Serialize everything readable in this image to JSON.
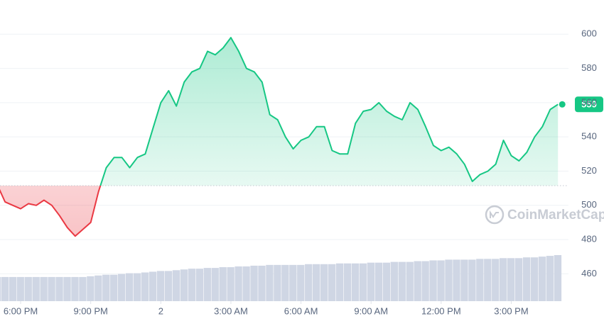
{
  "chart_data": {
    "type": "line",
    "series": [
      {
        "name": "Price",
        "color": "#16c784",
        "down_color": "#ea3943",
        "values": [
          512,
          502,
          500,
          498,
          501,
          500,
          503,
          500,
          494,
          487,
          482,
          486,
          490,
          508,
          522,
          528,
          528,
          522,
          528,
          530,
          545,
          560,
          567,
          558,
          572,
          578,
          580,
          590,
          588,
          592,
          598,
          590,
          580,
          578,
          572,
          553,
          550,
          540,
          533,
          538,
          540,
          546,
          546,
          532,
          530,
          530,
          548,
          555,
          556,
          560,
          555,
          552,
          550,
          560,
          556,
          546,
          535,
          532,
          534,
          530,
          524,
          514,
          518,
          520,
          524,
          538,
          529,
          526,
          531,
          540,
          546,
          556,
          559
        ]
      },
      {
        "name": "Volume",
        "color": "#cfd6e4",
        "values": [
          32,
          32,
          32,
          32,
          32,
          32,
          32,
          32,
          32,
          32,
          32,
          32,
          33,
          34,
          35,
          35,
          36,
          37,
          37,
          38,
          39,
          40,
          40,
          41,
          42,
          43,
          43,
          44,
          44,
          45,
          45,
          46,
          46,
          47,
          47,
          48,
          48,
          48,
          48,
          48,
          49,
          49,
          49,
          49,
          50,
          50,
          50,
          50,
          51,
          51,
          51,
          52,
          52,
          52,
          53,
          53,
          54,
          54,
          55,
          55,
          55,
          55,
          56,
          56,
          56,
          57,
          57,
          57,
          58,
          58,
          59,
          60,
          61
        ]
      }
    ],
    "baseline": 511.5,
    "ylim": [
      444,
      620
    ],
    "yticks": [
      460,
      480,
      500,
      520,
      540,
      560,
      580,
      600
    ],
    "xlim": [
      0.35,
      72.8
    ],
    "xticks": [
      {
        "value": 3,
        "label": "6:00 PM"
      },
      {
        "value": 12,
        "label": "9:00 PM"
      },
      {
        "value": 21,
        "label": "2"
      },
      {
        "value": 30,
        "label": "3:00 AM"
      },
      {
        "value": 39,
        "label": "6:00 AM"
      },
      {
        "value": 48,
        "label": "9:00 AM"
      },
      {
        "value": 57,
        "label": "12:00 PM"
      },
      {
        "value": 66,
        "label": "3:00 PM"
      }
    ],
    "grid": true,
    "watermark": "CoinMarketCap"
  }
}
